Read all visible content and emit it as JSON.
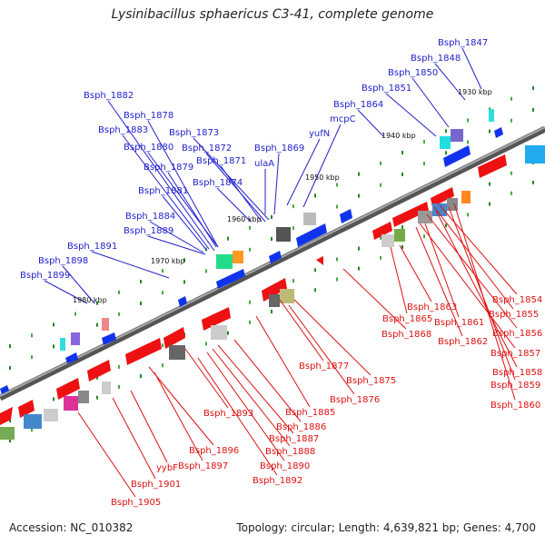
{
  "title": "Lysinibacillus sphaericus C3-41, complete genome",
  "footer": {
    "accession": "Accession: NC_010382",
    "summary": "Topology: circular; Length: 4,639,821 bp; Genes: 4,700"
  },
  "colors": {
    "upper_genes": "#2222cc",
    "lower_genes": "#dd1111",
    "backbone": "#888888"
  },
  "kbp_marks": [
    "1930 kbp",
    "1940 kbp",
    "1950 kbp",
    "1960 kbp",
    "1970 kbp",
    "1980 kbp"
  ],
  "upper_labels": [
    "Bsph_1847",
    "Bsph_1848",
    "Bsph_1850",
    "Bsph_1851",
    "Bsph_1864",
    "mcpC",
    "yufN",
    "Bsph_1869",
    "ulaA",
    "Bsph_1882",
    "Bsph_1878",
    "Bsph_1883",
    "Bsph_1873",
    "Bsph_1880",
    "Bsph_1872",
    "Bsph_1879",
    "Bsph_1871",
    "Bsph_1874",
    "Bsph_1881",
    "Bsph_1884",
    "Bsph_1889",
    "Bsph_1891",
    "Bsph_1898",
    "Bsph_1899"
  ],
  "lower_labels": [
    "Bsph_1854",
    "Bsph_1855",
    "Bsph_1863",
    "Bsph_1865",
    "Bsph_1861",
    "Bsph_1856",
    "Bsph_1862",
    "Bsph_1857",
    "Bsph_1868",
    "Bsph_1858",
    "Bsph_1859",
    "Bsph_1860",
    "Bsph_1877",
    "Bsph_1875",
    "Bsph_1876",
    "Bsph_1885",
    "Bsph_1893",
    "Bsph_1886",
    "Bsph_1887",
    "Bsph_1888",
    "Bsph_1896",
    "Bsph_1890",
    "Bsph_1897",
    "yybF",
    "Bsph_1892",
    "Bsph_1901",
    "Bsph_1905"
  ]
}
